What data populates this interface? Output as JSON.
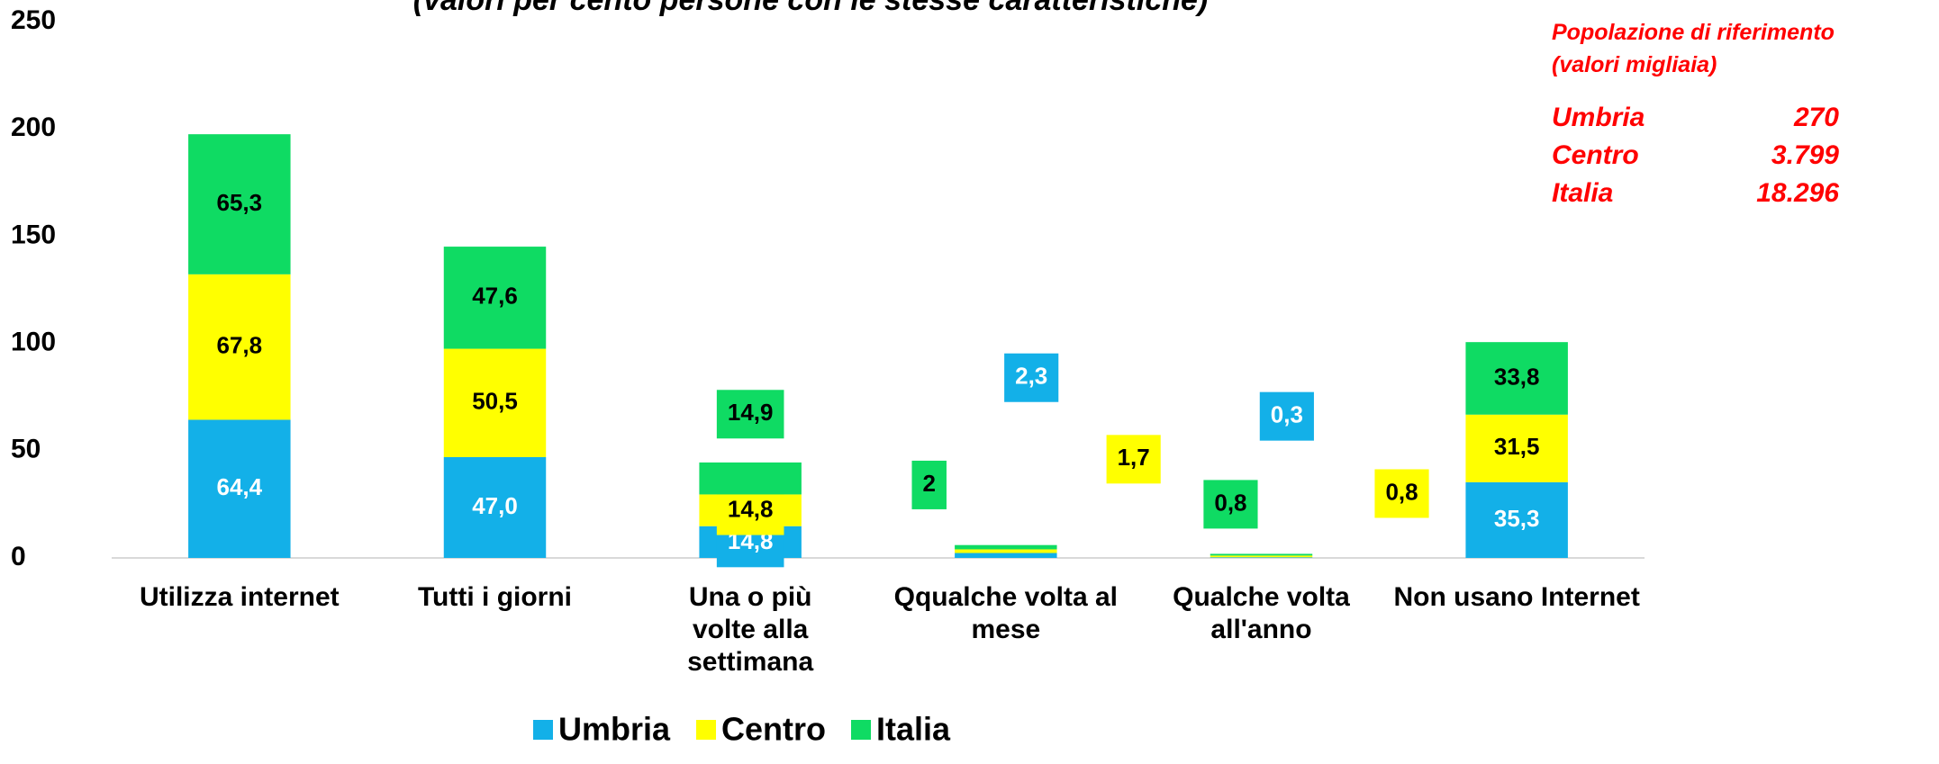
{
  "chart_data": {
    "type": "stacked_bar",
    "subtitle": "(valori per cento persone con le stesse caratteristiche)",
    "categories": [
      "Utilizza internet",
      "Tutti i giorni",
      "Una o più volte alla settimana",
      "Qqualche volta al mese",
      "Qualche volta all'anno",
      "Non usano Internet"
    ],
    "series": [
      {
        "name": "Umbria",
        "color": "#13b0e8",
        "values": [
          64.4,
          47.0,
          14.8,
          2.3,
          0.3,
          35.3
        ],
        "value_labels": [
          "64,4",
          "47,0",
          "14,8",
          "2,3",
          "0,3",
          "35,3"
        ]
      },
      {
        "name": "Centro",
        "color": "#ffff00",
        "values": [
          67.8,
          50.5,
          14.8,
          1.7,
          0.8,
          31.5
        ],
        "value_labels": [
          "67,8",
          "50,5",
          "14,8",
          "1,7",
          "0,8",
          "31,5"
        ]
      },
      {
        "name": "Italia",
        "color": "#0fdb63",
        "values": [
          65.3,
          47.6,
          14.9,
          2,
          0.8,
          33.8
        ],
        "value_labels": [
          "65,3",
          "47,6",
          "14,9",
          "2",
          "0,8",
          "33,8"
        ]
      }
    ],
    "ylim": [
      0,
      250
    ],
    "yticks": [
      0,
      50,
      100,
      150,
      200,
      250
    ],
    "grid": false,
    "legend": "bottom",
    "annotation": {
      "title": "Popolazione di riferimento",
      "subtitle": "(valori migliaia)",
      "rows": [
        {
          "name": "Umbria",
          "value": "270"
        },
        {
          "name": "Centro",
          "value": "3.799"
        },
        {
          "name": "Italia",
          "value": "18.296"
        }
      ]
    }
  }
}
